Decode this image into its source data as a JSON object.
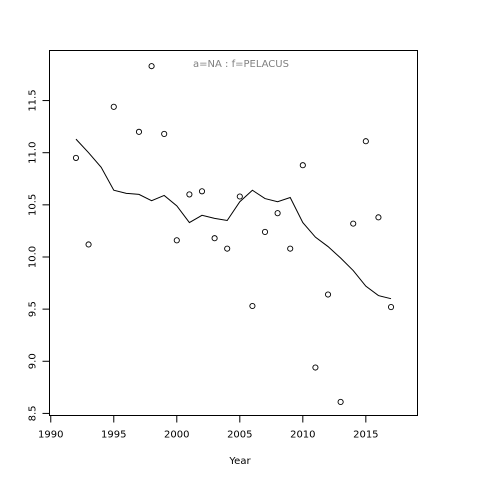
{
  "chart_data": {
    "type": "scatter",
    "title": "a=NA  :  f=PELACUS",
    "x_label": "Year",
    "series": [
      {
        "type": "scatter",
        "color": "#000000",
        "x": [
          1992,
          1993,
          1995,
          1997,
          1998,
          1999,
          2000,
          2001,
          2002,
          2003,
          2004,
          2005,
          2006,
          2007,
          2008,
          2009,
          2010,
          2011,
          2012,
          2013,
          2014,
          2015,
          2016,
          2017
        ],
        "values": [
          10.95,
          10.12,
          11.44,
          11.2,
          11.83,
          11.18,
          10.16,
          10.6,
          10.63,
          10.18,
          10.08,
          10.58,
          9.53,
          10.24,
          10.42,
          10.08,
          10.88,
          8.94,
          9.64,
          8.61,
          10.32,
          11.11,
          10.38,
          9.52
        ]
      },
      {
        "type": "line",
        "color": "#000000",
        "x": [
          1992,
          1993,
          1994,
          1995,
          1996,
          1997,
          1998,
          1999,
          2000,
          2001,
          2002,
          2003,
          2004,
          2005,
          2006,
          2007,
          2008,
          2009,
          2010,
          2011,
          2012,
          2013,
          2014,
          2015,
          2016,
          2017
        ],
        "values": [
          11.13,
          11.0,
          10.86,
          10.64,
          10.61,
          10.6,
          10.54,
          10.59,
          10.49,
          10.33,
          10.4,
          10.37,
          10.35,
          10.53,
          10.64,
          10.56,
          10.53,
          10.57,
          10.33,
          10.19,
          10.1,
          9.99,
          9.87,
          9.72,
          9.63,
          9.6
        ]
      }
    ],
    "xlim": [
      1989.9,
      2019.1
    ],
    "ylim": [
      8.48,
      11.98
    ],
    "xticks": [
      1990,
      1995,
      2000,
      2005,
      2010,
      2015
    ],
    "yticks": [
      8.5,
      {
        "value": 9,
        "label": "9.0"
      },
      9.5,
      {
        "value": 10,
        "label": "10.0"
      },
      10.5,
      {
        "value": 11,
        "label": "11.0"
      },
      11.5
    ]
  }
}
